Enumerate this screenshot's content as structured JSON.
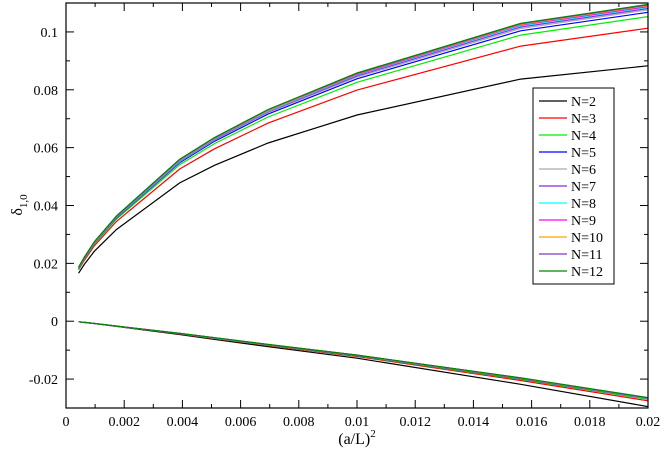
{
  "chart_data": {
    "type": "line",
    "xlabel": "(a/L)",
    "xlabel_sup": "2",
    "ylabel": "δ",
    "ylabel_sub": "1,0",
    "xlim": [
      0,
      0.02
    ],
    "ylim": [
      -0.03,
      0.11
    ],
    "x_ticks": [
      0,
      0.002,
      0.004,
      0.006,
      0.008,
      0.01,
      0.012,
      0.014,
      0.016,
      0.018,
      0.02
    ],
    "x_tick_labels": [
      "0",
      "0.002",
      "0.004",
      "0.006",
      "0.008",
      "0.01",
      "0.012",
      "0.014",
      "0.016",
      "0.018",
      "0.02"
    ],
    "y_ticks": [
      -0.02,
      0,
      0.02,
      0.04,
      0.06,
      0.08,
      0.1
    ],
    "y_tick_labels": [
      "-0.02",
      "0",
      "0.02",
      "0.04",
      "0.06",
      "0.08",
      "0.1"
    ],
    "grid": false,
    "legend_position": "right",
    "x": [
      0.000434,
      0.000625,
      0.000977,
      0.001736,
      0.003906,
      0.005102,
      0.006944,
      0.01,
      0.015625,
      0.02
    ],
    "series": [
      {
        "name": "N=2",
        "color": "#000000",
        "upper": [
          0.0166,
          0.0196,
          0.0242,
          0.0317,
          0.0478,
          0.0539,
          0.0616,
          0.0713,
          0.0837,
          0.0883
        ],
        "lower": [
          -0.0002,
          -0.0004,
          -0.0008,
          -0.0018,
          -0.0046,
          -0.0063,
          -0.0088,
          -0.0128,
          -0.0218,
          -0.0295
        ]
      },
      {
        "name": "N=3",
        "color": "#ff0000",
        "upper": [
          0.0178,
          0.021,
          0.0261,
          0.0345,
          0.0526,
          0.0596,
          0.0685,
          0.0799,
          0.0951,
          0.1013
        ],
        "lower": [
          -0.0002,
          -0.0004,
          -0.0008,
          -0.0017,
          -0.0044,
          -0.006,
          -0.0084,
          -0.0122,
          -0.0205,
          -0.0275
        ]
      },
      {
        "name": "N=4",
        "color": "#00ee00",
        "upper": [
          0.0181,
          0.0214,
          0.0267,
          0.0353,
          0.0541,
          0.0614,
          0.0706,
          0.0826,
          0.0989,
          0.1053
        ],
        "lower": [
          -0.0002,
          -0.0004,
          -0.0008,
          -0.0017,
          -0.0043,
          -0.0059,
          -0.0083,
          -0.012,
          -0.0201,
          -0.027
        ]
      },
      {
        "name": "N=5",
        "color": "#0000ff",
        "upper": [
          0.0183,
          0.0216,
          0.027,
          0.0357,
          0.0548,
          0.0622,
          0.0716,
          0.0838,
          0.1004,
          0.1068
        ],
        "lower": [
          -0.0002,
          -0.0004,
          -0.0008,
          -0.0017,
          -0.0043,
          -0.0058,
          -0.0082,
          -0.0119,
          -0.0199,
          -0.0268
        ]
      },
      {
        "name": "N=6",
        "color": "#aaaaaa",
        "upper": [
          0.0184,
          0.0217,
          0.0271,
          0.0359,
          0.0551,
          0.0626,
          0.0721,
          0.0844,
          0.1012,
          0.1076
        ],
        "lower": [
          -0.0002,
          -0.0004,
          -0.0008,
          -0.0017,
          -0.0043,
          -0.0058,
          -0.0082,
          -0.0118,
          -0.0198,
          -0.0267
        ]
      },
      {
        "name": "N=7",
        "color": "#8a2be2",
        "upper": [
          0.0185,
          0.0218,
          0.0272,
          0.036,
          0.0553,
          0.0629,
          0.0724,
          0.0848,
          0.1017,
          0.1081
        ],
        "lower": [
          -0.0002,
          -0.0004,
          -0.0008,
          -0.0017,
          -0.0042,
          -0.0058,
          -0.0081,
          -0.0118,
          -0.0198,
          -0.0266
        ]
      },
      {
        "name": "N=8",
        "color": "#00ffff",
        "upper": [
          0.0185,
          0.0219,
          0.0273,
          0.0361,
          0.0555,
          0.0631,
          0.0726,
          0.0851,
          0.1021,
          0.1085
        ],
        "lower": [
          -0.0002,
          -0.0004,
          -0.0008,
          -0.0017,
          -0.0042,
          -0.0058,
          -0.0081,
          -0.0118,
          -0.0197,
          -0.0266
        ]
      },
      {
        "name": "N=9",
        "color": "#ff00ff",
        "upper": [
          0.0186,
          0.0219,
          0.0274,
          0.0362,
          0.0557,
          0.0632,
          0.0728,
          0.0853,
          0.1024,
          0.1088
        ],
        "lower": [
          -0.0002,
          -0.0004,
          -0.0008,
          -0.0017,
          -0.0042,
          -0.0057,
          -0.0081,
          -0.0117,
          -0.0197,
          -0.0265
        ]
      },
      {
        "name": "N=10",
        "color": "#ffa500",
        "upper": [
          0.0186,
          0.022,
          0.0274,
          0.0363,
          0.0558,
          0.0633,
          0.0729,
          0.0855,
          0.1026,
          0.1091
        ],
        "lower": [
          -0.0002,
          -0.0004,
          -0.0008,
          -0.0017,
          -0.0042,
          -0.0057,
          -0.0081,
          -0.0117,
          -0.0197,
          -0.0265
        ]
      },
      {
        "name": "N=11",
        "color": "#7b3fbf",
        "upper": [
          0.0186,
          0.022,
          0.0275,
          0.0363,
          0.0559,
          0.0634,
          0.0731,
          0.0856,
          0.1028,
          0.1093
        ],
        "lower": [
          -0.0002,
          -0.0004,
          -0.0008,
          -0.0017,
          -0.0042,
          -0.0057,
          -0.0081,
          -0.0117,
          -0.0196,
          -0.0265
        ]
      },
      {
        "name": "N=12",
        "color": "#008800",
        "upper": [
          0.0187,
          0.0221,
          0.0275,
          0.0364,
          0.056,
          0.0635,
          0.0732,
          0.0858,
          0.103,
          0.1095
        ],
        "lower": [
          -0.0002,
          -0.0004,
          -0.0008,
          -0.0017,
          -0.0042,
          -0.0057,
          -0.008,
          -0.0117,
          -0.0196,
          -0.0264
        ]
      }
    ]
  }
}
